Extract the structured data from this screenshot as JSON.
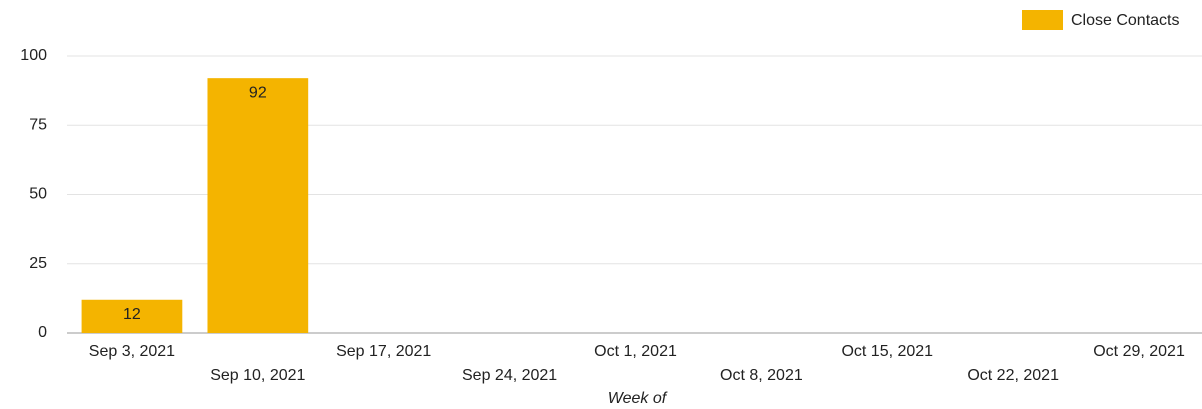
{
  "chart_data": {
    "type": "bar",
    "categories": [
      "Sep 3, 2021",
      "Sep 10, 2021",
      "Sep 17, 2021",
      "Sep 24, 2021",
      "Oct 1, 2021",
      "Oct 8, 2021",
      "Oct 15, 2021",
      "Oct 22, 2021",
      "Oct 29, 2021"
    ],
    "series": [
      {
        "name": "Close Contacts",
        "color": "#f4b400",
        "values": [
          12,
          92,
          null,
          null,
          null,
          null,
          null,
          null,
          null
        ]
      }
    ],
    "x_label": "Week of",
    "ylim": [
      0,
      100
    ],
    "yticks": [
      0,
      25,
      50,
      75,
      100
    ],
    "grid": true,
    "legend": "top-right"
  }
}
